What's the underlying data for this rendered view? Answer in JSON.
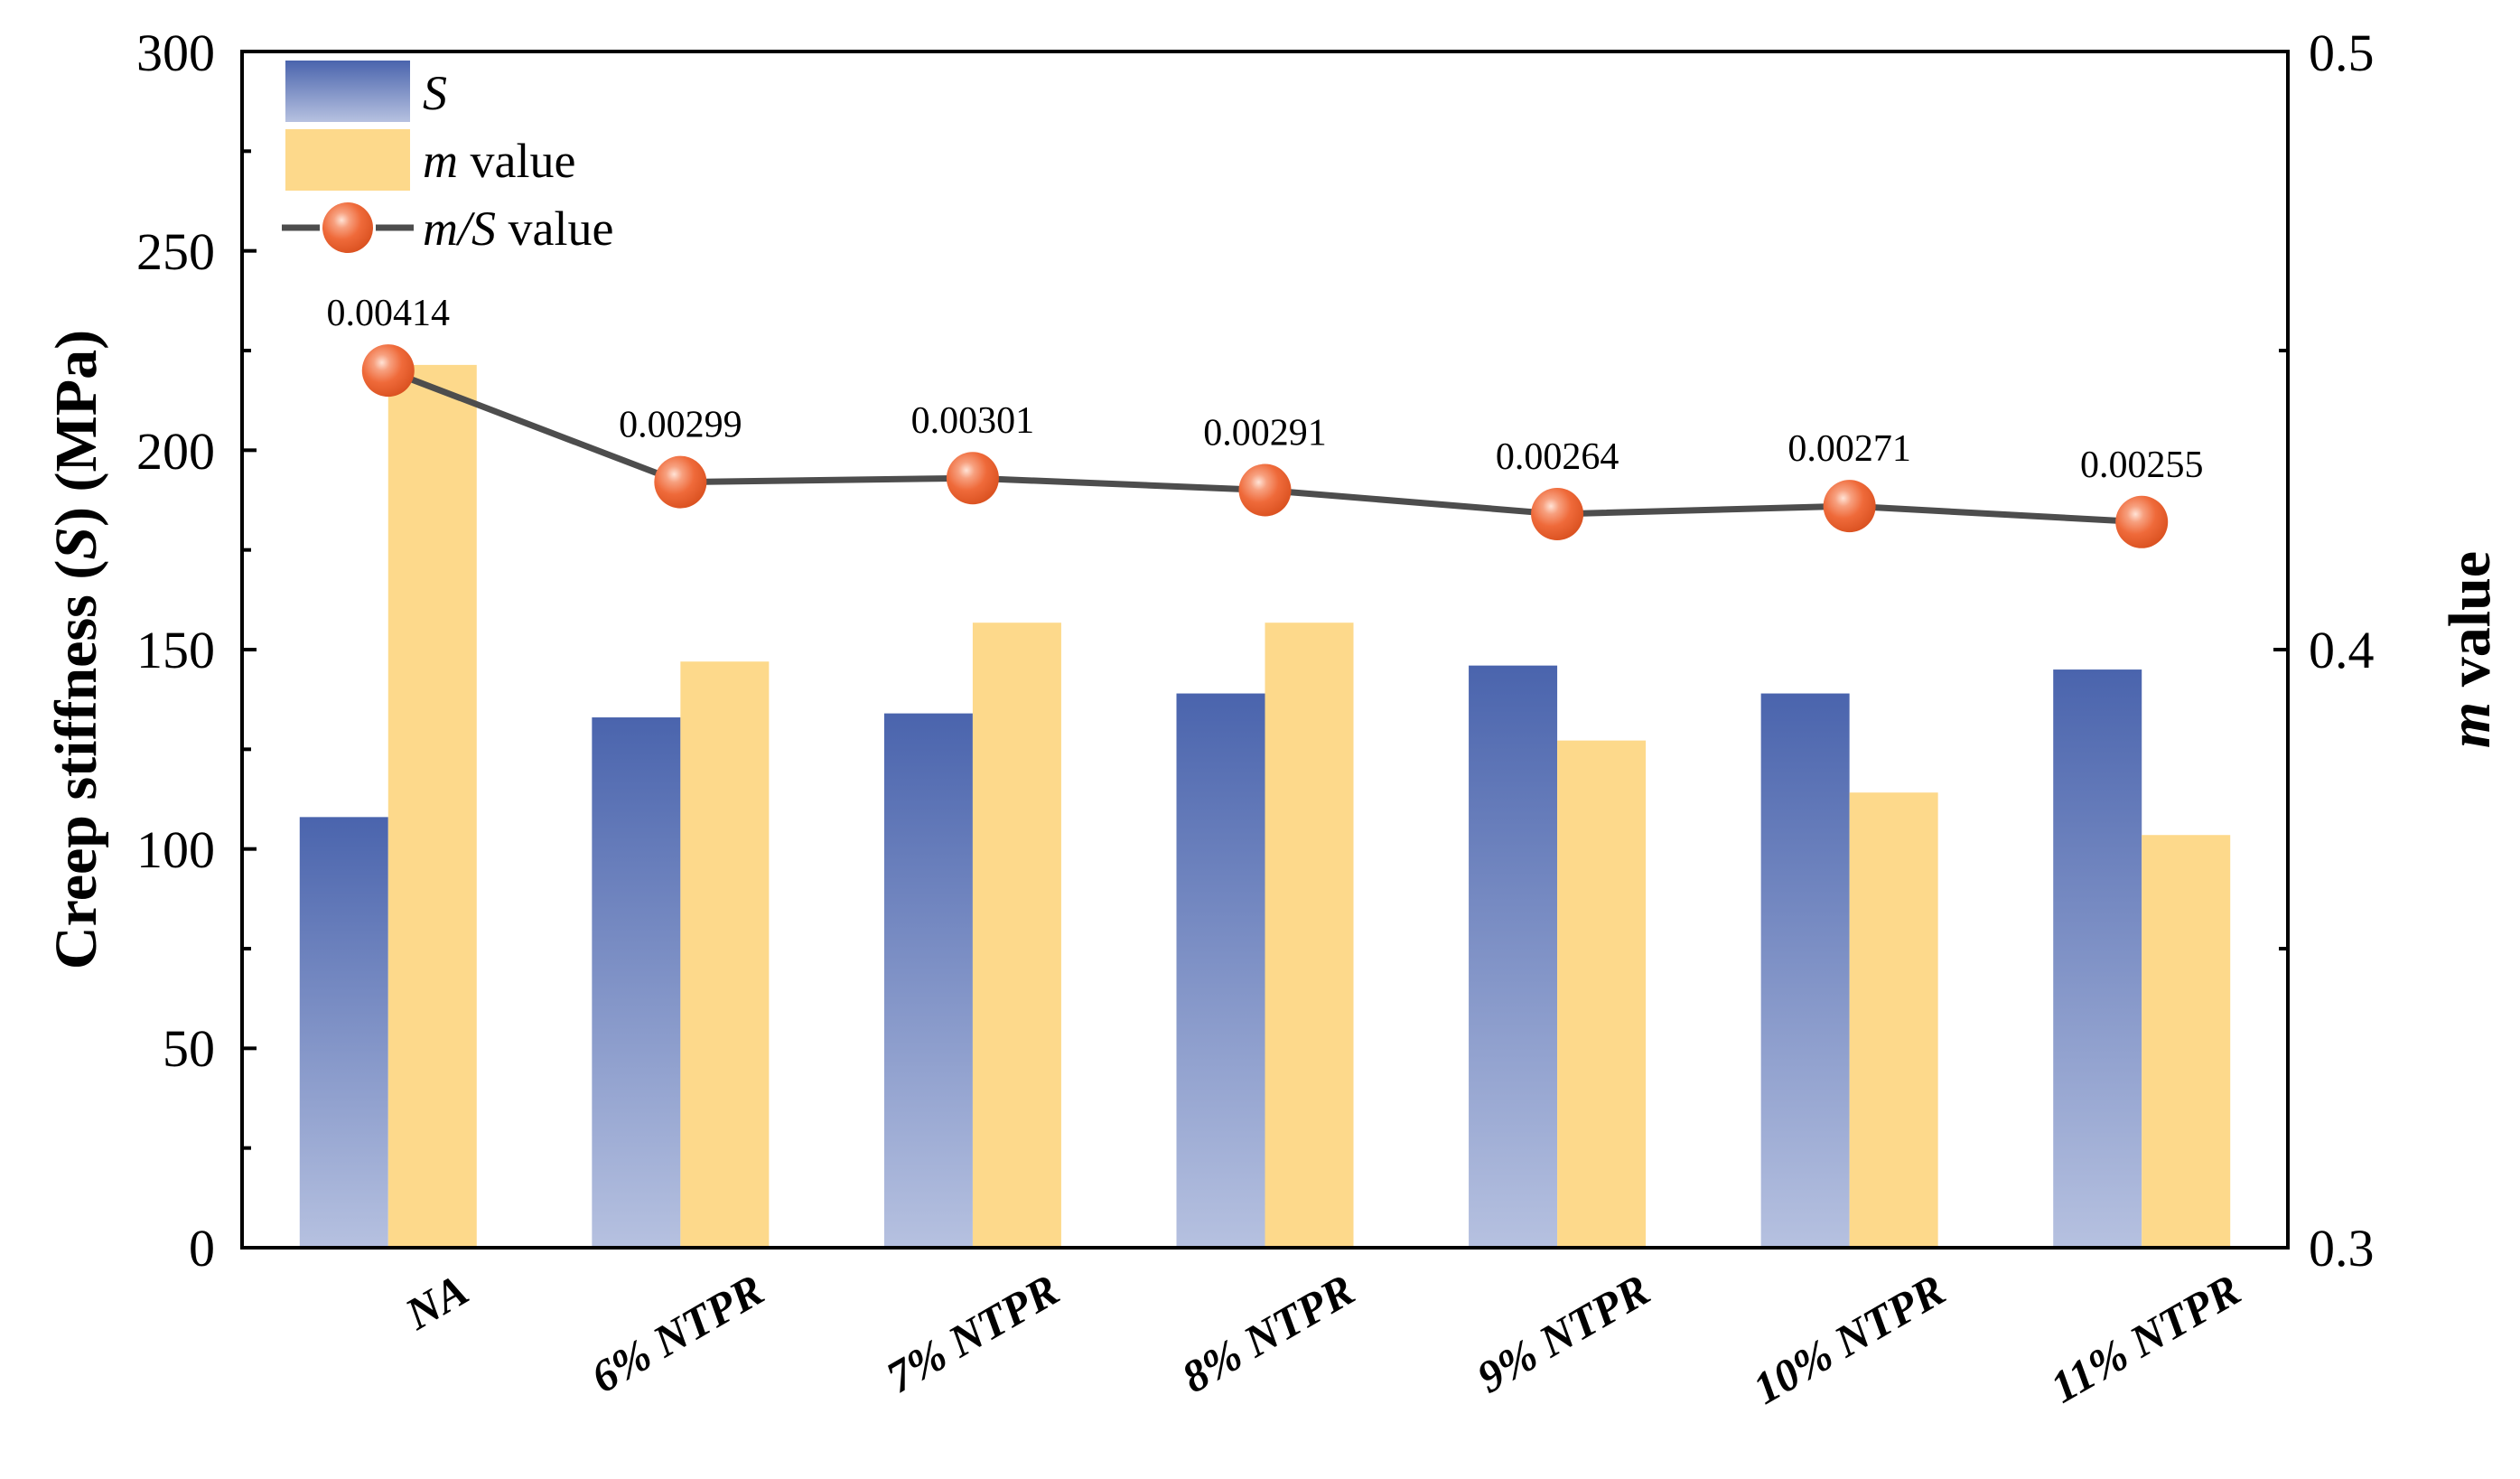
{
  "chart_data": {
    "type": "bar",
    "categories": [
      "NA",
      "6% NTPR",
      "7% NTPR",
      "8% NTPR",
      "9% NTPR",
      "10% NTPR",
      "11% NTPR"
    ],
    "series": [
      {
        "name": "S",
        "axis": "left",
        "kind": "bar",
        "values": [
          108,
          133,
          134,
          139,
          146,
          139,
          145
        ]
      },
      {
        "name": "m value",
        "axis": "right",
        "kind": "bar",
        "values": [
          0.4476,
          0.398,
          0.4045,
          0.4045,
          0.3848,
          0.3761,
          0.369
        ]
      },
      {
        "name": "m/S value",
        "axis": "left",
        "kind": "line",
        "values": [
          220,
          192,
          193,
          190,
          184,
          186,
          182
        ],
        "labels": [
          "0.00414",
          "0.00299",
          "0.00301",
          "0.00291",
          "0.00264",
          "0.00271",
          "0.00255"
        ]
      }
    ],
    "ylabel": "Creep stiffness (S) (MPa)",
    "ylabel_parts": [
      "Creep stiffness (",
      "S",
      ") (MPa)"
    ],
    "y2label": "m value",
    "y2label_parts": [
      "m",
      " value"
    ],
    "ylim": [
      0,
      300
    ],
    "y2lim": [
      0.3,
      0.5
    ],
    "yticks": [
      "0",
      "50",
      "100",
      "150",
      "200",
      "250",
      "300"
    ],
    "y2ticks": [
      "0.3",
      "0.4",
      "0.5"
    ],
    "legend": {
      "position": "top-left",
      "entries": [
        {
          "italic": "S",
          "rest": ""
        },
        {
          "italic": "m",
          "rest": " value"
        },
        {
          "italic": "m/S",
          "rest": " value"
        }
      ]
    },
    "colors": {
      "s_top": "#4a64ad",
      "s_bottom": "#b6c1e0",
      "m_fill": "#fdd98b",
      "line": "#4d4d4d",
      "marker": "#ef6a3a",
      "marker_highlight": "#ffe3d6",
      "axis": "#000000"
    }
  }
}
